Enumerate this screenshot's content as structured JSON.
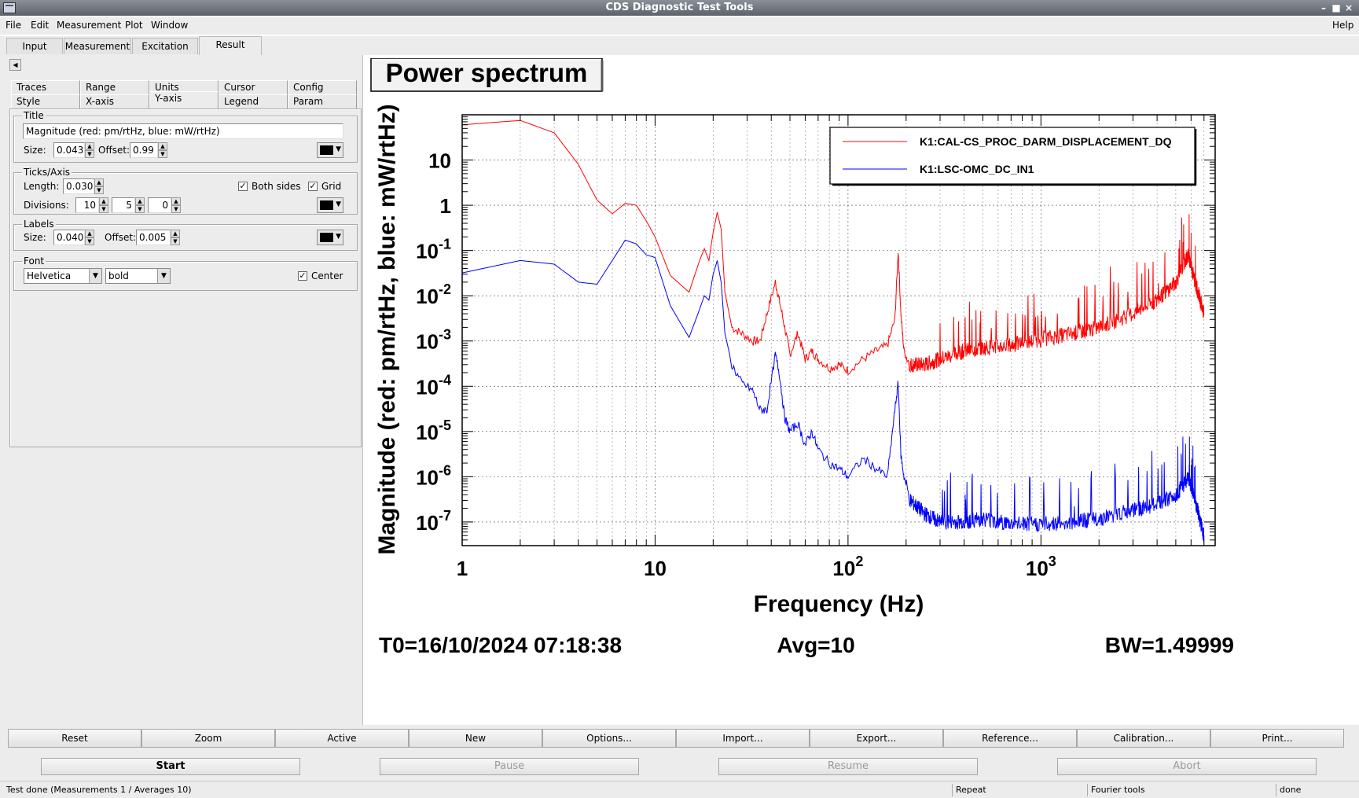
{
  "window": {
    "title": "CDS Diagnostic Test Tools"
  },
  "menubar": {
    "items": [
      "File",
      "Edit",
      "Measurement",
      "Plot",
      "Window"
    ],
    "help": "Help"
  },
  "top_tabs": [
    "Input",
    "Measurement",
    "Excitation",
    "Result"
  ],
  "panel": {
    "subtabs_row1": [
      "Traces",
      "Range",
      "Units",
      "Cursor",
      "Config"
    ],
    "subtabs_row2": [
      "Style",
      "X-axis",
      "Y-axis",
      "Legend",
      "Param"
    ],
    "title_group": {
      "label": "Title",
      "text": "Magnitude (red: pm/rtHz, blue: mW/rtHz)",
      "size_label": "Size:",
      "size_value": "0.043",
      "offset_label": "Offset:",
      "offset_value": "0.99"
    },
    "ticks_group": {
      "label": "Ticks/Axis",
      "length_label": "Length:",
      "length_value": "0.030",
      "both_sides_label": "Both sides",
      "both_sides_checked": true,
      "grid_label": "Grid",
      "grid_checked": true,
      "divisions_label": "Divisions:",
      "div1": "10",
      "div2": "5",
      "div3": "0"
    },
    "labels_group": {
      "label": "Labels",
      "size_label": "Size:",
      "size_value": "0.040",
      "offset_label": "Offset:",
      "offset_value": "0.005"
    },
    "font_group": {
      "label": "Font",
      "family": "Helvetica",
      "weight": "bold",
      "center_label": "Center",
      "center_checked": true
    },
    "color_value": "#000000"
  },
  "plot": {
    "title": "Power spectrum",
    "footer_t0": "T0=16/10/2024 07:18:38",
    "footer_avg": "Avg=10",
    "footer_bw": "BW=1.49999"
  },
  "chart_data": {
    "type": "line",
    "title": "Power spectrum",
    "xlabel": "Frequency (Hz)",
    "ylabel": "Magnitude (red: pm/rtHz, blue: mW/rtHz)",
    "xscale": "log",
    "yscale": "log",
    "xlim": [
      1,
      8000
    ],
    "ylim": [
      3e-08,
      100
    ],
    "x_tick_labels": [
      "1",
      "10",
      "10^2",
      "10^3"
    ],
    "y_tick_labels": [
      "10^-7",
      "10^-6",
      "10^-5",
      "10^-4",
      "10^-3",
      "10^-2",
      "10^-1",
      "1",
      "10"
    ],
    "grid": true,
    "legend_position": "top-right",
    "series": [
      {
        "name": "K1:CAL-CS_PROC_DARM_DISPLACEMENT_DQ",
        "color": "#ff0000",
        "x": [
          1,
          2,
          3,
          4,
          5,
          6,
          7,
          8,
          9,
          10,
          12,
          15,
          17,
          18,
          19,
          20,
          21,
          22,
          23,
          25,
          28,
          32,
          35,
          38,
          42,
          44,
          47,
          50,
          55,
          60,
          65,
          70,
          80,
          90,
          100,
          120,
          140,
          160,
          175,
          182,
          188,
          195,
          210,
          250,
          300,
          400,
          500,
          700,
          1000,
          1500,
          2000,
          3000,
          4000,
          5000,
          5800,
          6300,
          7000
        ],
        "y": [
          60,
          75,
          40,
          8,
          1.3,
          0.65,
          1.1,
          1,
          0.45,
          0.2,
          0.028,
          0.012,
          0.06,
          0.11,
          0.06,
          0.25,
          0.7,
          0.3,
          0.012,
          0.002,
          0.0015,
          0.001,
          0.001,
          0.004,
          0.02,
          0.008,
          0.002,
          0.0005,
          0.0015,
          0.0004,
          0.0006,
          0.0004,
          0.00025,
          0.0003,
          0.00022,
          0.0004,
          0.0006,
          0.0008,
          0.003,
          0.1,
          0.004,
          0.0006,
          0.0003,
          0.0003,
          0.0004,
          0.0006,
          0.0007,
          0.0008,
          0.0011,
          0.0015,
          0.002,
          0.004,
          0.008,
          0.02,
          0.08,
          0.02,
          0.004
        ]
      },
      {
        "name": "K1:LSC-OMC_DC_IN1",
        "color": "#0000ff",
        "x": [
          1,
          2,
          3,
          4,
          5,
          6,
          7,
          8,
          9,
          10,
          12,
          15,
          17,
          18,
          19,
          20,
          21,
          22,
          23,
          25,
          28,
          32,
          35,
          38,
          42,
          44,
          47,
          50,
          55,
          60,
          65,
          70,
          80,
          90,
          100,
          120,
          140,
          160,
          175,
          182,
          188,
          195,
          210,
          250,
          300,
          400,
          500,
          700,
          1000,
          1500,
          2000,
          3000,
          4000,
          5000,
          5800,
          6300,
          7000
        ],
        "y": [
          0.032,
          0.06,
          0.05,
          0.02,
          0.018,
          0.06,
          0.17,
          0.14,
          0.08,
          0.07,
          0.006,
          0.0012,
          0.005,
          0.01,
          0.008,
          0.03,
          0.06,
          0.02,
          0.0015,
          0.0003,
          0.00012,
          8e-05,
          3e-05,
          3e-05,
          0.0005,
          0.0002,
          2e-05,
          1e-05,
          1.5e-05,
          5e-06,
          1e-05,
          4e-06,
          2e-06,
          1.5e-06,
          1e-06,
          2.5e-06,
          1.5e-06,
          1e-06,
          3e-05,
          0.00012,
          3e-06,
          1e-06,
          3e-07,
          1.5e-07,
          1e-07,
          1e-07,
          1.2e-07,
          9e-08,
          9e-08,
          1e-07,
          1.2e-07,
          1.8e-07,
          2.5e-07,
          4e-07,
          9e-07,
          3e-07,
          5e-08
        ]
      }
    ]
  },
  "buttons_row1": [
    "Reset",
    "Zoom",
    "Active",
    "New",
    "Options...",
    "Import...",
    "Export...",
    "Reference...",
    "Calibration...",
    "Print..."
  ],
  "buttons_row2": {
    "start": "Start",
    "pause": "Pause",
    "resume": "Resume",
    "abort": "Abort"
  },
  "status": {
    "main": "Test done (Measurements 1 / Averages 10)",
    "mode": "Repeat",
    "tool": "Fourier tools",
    "state": "done"
  }
}
